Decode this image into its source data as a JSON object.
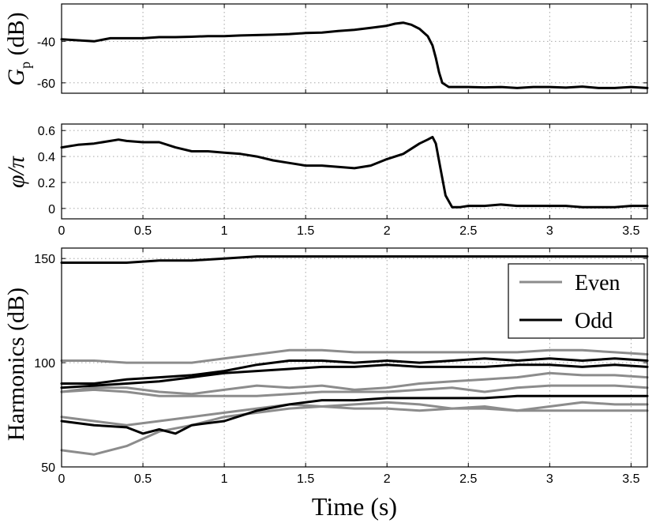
{
  "chart_data": [
    {
      "type": "line",
      "ylabel": "G_p (dB)",
      "ylabel_main": "G",
      "ylabel_sub": "p",
      "ylabel_unit": "(dB)",
      "xlim": [
        0,
        3.6
      ],
      "ylim": [
        -65,
        -22
      ],
      "xticks": [
        0,
        0.5,
        1,
        1.5,
        2,
        2.5,
        3,
        3.5
      ],
      "yticks": [
        -60,
        -40
      ],
      "ytick_labels": [
        "-60",
        "-40"
      ],
      "xtick_labels_shown": false,
      "grid": true,
      "series": [
        {
          "color": "#000000",
          "x": [
            0,
            0.1,
            0.2,
            0.3,
            0.4,
            0.5,
            0.6,
            0.7,
            0.8,
            0.9,
            1.0,
            1.1,
            1.2,
            1.3,
            1.4,
            1.5,
            1.6,
            1.7,
            1.8,
            1.9,
            2.0,
            2.05,
            2.1,
            2.15,
            2.2,
            2.25,
            2.28,
            2.3,
            2.32,
            2.34,
            2.38,
            2.45,
            2.5,
            2.6,
            2.7,
            2.8,
            2.9,
            3.0,
            3.1,
            3.2,
            3.3,
            3.4,
            3.5,
            3.6
          ],
          "y": [
            -39.0,
            -39.5,
            -40.0,
            -38.5,
            -38.5,
            -38.5,
            -38.0,
            -38.0,
            -37.8,
            -37.5,
            -37.5,
            -37.2,
            -37.0,
            -36.8,
            -36.5,
            -36.0,
            -35.8,
            -35.0,
            -34.5,
            -33.5,
            -32.5,
            -31.5,
            -31.0,
            -32.0,
            -34.0,
            -37.5,
            -42.0,
            -48.0,
            -55.0,
            -60.0,
            -62.0,
            -62.0,
            -62.0,
            -62.2,
            -62.0,
            -62.5,
            -62.0,
            -62.0,
            -62.3,
            -61.8,
            -62.5,
            -62.5,
            -62.0,
            -62.5
          ]
        }
      ]
    },
    {
      "type": "line",
      "ylabel": "φ/π",
      "xlim": [
        0,
        3.6
      ],
      "ylim": [
        -0.08,
        0.65
      ],
      "xticks": [
        0,
        0.5,
        1,
        1.5,
        2,
        2.5,
        3,
        3.5
      ],
      "xtick_labels": [
        "0",
        "0.5",
        "1",
        "1.5",
        "2",
        "2.5",
        "3",
        "3.5"
      ],
      "yticks": [
        0,
        0.2,
        0.4,
        0.6
      ],
      "ytick_labels": [
        "0",
        "0.2",
        "0.4",
        "0.6"
      ],
      "grid": true,
      "series": [
        {
          "color": "#000000",
          "x": [
            0,
            0.1,
            0.2,
            0.3,
            0.35,
            0.4,
            0.5,
            0.6,
            0.7,
            0.8,
            0.9,
            1.0,
            1.1,
            1.2,
            1.3,
            1.4,
            1.5,
            1.6,
            1.7,
            1.8,
            1.9,
            2.0,
            2.1,
            2.2,
            2.25,
            2.28,
            2.3,
            2.33,
            2.36,
            2.4,
            2.45,
            2.5,
            2.6,
            2.7,
            2.8,
            2.9,
            3.0,
            3.1,
            3.2,
            3.3,
            3.4,
            3.5,
            3.6
          ],
          "y": [
            0.47,
            0.49,
            0.5,
            0.52,
            0.53,
            0.52,
            0.51,
            0.51,
            0.47,
            0.44,
            0.44,
            0.43,
            0.42,
            0.4,
            0.37,
            0.35,
            0.33,
            0.33,
            0.32,
            0.31,
            0.33,
            0.38,
            0.42,
            0.5,
            0.53,
            0.55,
            0.5,
            0.3,
            0.1,
            0.01,
            0.01,
            0.02,
            0.02,
            0.03,
            0.02,
            0.02,
            0.02,
            0.02,
            0.01,
            0.01,
            0.01,
            0.02,
            0.02
          ]
        }
      ]
    },
    {
      "type": "line",
      "ylabel": "Harmonics (dB)",
      "xlabel": "Time (s)",
      "xlim": [
        0,
        3.6
      ],
      "ylim": [
        50,
        155
      ],
      "xticks": [
        0,
        0.5,
        1,
        1.5,
        2,
        2.5,
        3,
        3.5
      ],
      "xtick_labels": [
        "0",
        "0.5",
        "1",
        "1.5",
        "2",
        "2.5",
        "3",
        "3.5"
      ],
      "yticks": [
        50,
        100,
        150
      ],
      "ytick_labels": [
        "50",
        "100",
        "150"
      ],
      "grid": true,
      "legend": {
        "position": "top-right",
        "entries": [
          {
            "name": "Even",
            "color": "#8c8c8c"
          },
          {
            "name": "Odd",
            "color": "#000000"
          }
        ]
      },
      "series": [
        {
          "group": "Odd",
          "color": "#000000",
          "x": [
            0,
            0.2,
            0.4,
            0.6,
            0.8,
            1.0,
            1.2,
            1.4,
            1.6,
            1.8,
            2.0,
            2.2,
            2.4,
            2.6,
            2.8,
            3.0,
            3.2,
            3.4,
            3.6
          ],
          "y": [
            148,
            148,
            148,
            149,
            149,
            150,
            151,
            151,
            151,
            151,
            151,
            151,
            151,
            151,
            151,
            151,
            151,
            151,
            151
          ]
        },
        {
          "group": "Even",
          "color": "#8c8c8c",
          "x": [
            0,
            0.2,
            0.4,
            0.6,
            0.8,
            1.0,
            1.2,
            1.4,
            1.6,
            1.8,
            2.0,
            2.2,
            2.4,
            2.6,
            2.8,
            3.0,
            3.2,
            3.4,
            3.6
          ],
          "y": [
            101,
            101,
            100,
            100,
            100,
            102,
            104,
            106,
            106,
            105,
            105,
            105,
            105,
            105,
            105,
            106,
            106,
            105,
            104
          ]
        },
        {
          "group": "Odd",
          "color": "#000000",
          "x": [
            0,
            0.2,
            0.4,
            0.6,
            0.8,
            1.0,
            1.2,
            1.4,
            1.6,
            1.8,
            2.0,
            2.2,
            2.4,
            2.6,
            2.8,
            3.0,
            3.2,
            3.4,
            3.6
          ],
          "y": [
            90,
            90,
            92,
            93,
            94,
            96,
            99,
            101,
            101,
            100,
            101,
            100,
            101,
            102,
            101,
            102,
            101,
            102,
            101
          ]
        },
        {
          "group": "Odd",
          "color": "#000000",
          "x": [
            0,
            0.2,
            0.4,
            0.6,
            0.8,
            1.0,
            1.2,
            1.4,
            1.6,
            1.8,
            2.0,
            2.2,
            2.4,
            2.6,
            2.8,
            3.0,
            3.2,
            3.4,
            3.6
          ],
          "y": [
            88,
            89,
            90,
            91,
            93,
            95,
            96,
            97,
            98,
            98,
            99,
            98,
            98,
            98,
            99,
            99,
            98,
            99,
            98
          ]
        },
        {
          "group": "Even",
          "color": "#8c8c8c",
          "x": [
            0,
            0.2,
            0.4,
            0.6,
            0.8,
            1.0,
            1.2,
            1.4,
            1.6,
            1.8,
            2.0,
            2.2,
            2.4,
            2.6,
            2.8,
            3.0,
            3.2,
            3.4,
            3.6
          ],
          "y": [
            86,
            88,
            88,
            86,
            85,
            87,
            89,
            88,
            89,
            87,
            88,
            90,
            91,
            92,
            93,
            95,
            94,
            94,
            93
          ]
        },
        {
          "group": "Even",
          "color": "#8c8c8c",
          "x": [
            0,
            0.2,
            0.4,
            0.6,
            0.8,
            1.0,
            1.2,
            1.4,
            1.6,
            1.8,
            2.0,
            2.2,
            2.4,
            2.6,
            2.8,
            3.0,
            3.2,
            3.4,
            3.6
          ],
          "y": [
            86,
            87,
            86,
            84,
            84,
            84,
            84,
            85,
            86,
            86,
            86,
            87,
            88,
            86,
            88,
            89,
            89,
            89,
            88
          ]
        },
        {
          "group": "Odd",
          "color": "#000000",
          "x": [
            0,
            0.2,
            0.4,
            0.5,
            0.6,
            0.7,
            0.8,
            1.0,
            1.2,
            1.4,
            1.6,
            1.8,
            2.0,
            2.2,
            2.4,
            2.6,
            2.8,
            3.0,
            3.2,
            3.4,
            3.6
          ],
          "y": [
            72,
            70,
            69,
            66,
            68,
            66,
            70,
            72,
            77,
            80,
            82,
            82,
            83,
            83,
            83,
            83,
            84,
            84,
            84,
            84,
            84
          ]
        },
        {
          "group": "Even",
          "color": "#8c8c8c",
          "x": [
            0,
            0.2,
            0.4,
            0.6,
            0.8,
            1.0,
            1.2,
            1.4,
            1.6,
            1.8,
            2.0,
            2.2,
            2.4,
            2.6,
            2.8,
            3.0,
            3.2,
            3.4,
            3.6
          ],
          "y": [
            74,
            72,
            70,
            72,
            74,
            76,
            78,
            80,
            79,
            80,
            81,
            80,
            78,
            79,
            77,
            79,
            81,
            80,
            80
          ]
        },
        {
          "group": "Even",
          "color": "#8c8c8c",
          "x": [
            0,
            0.2,
            0.4,
            0.6,
            0.8,
            1.0,
            1.2,
            1.4,
            1.6,
            1.8,
            2.0,
            2.2,
            2.4,
            2.6,
            2.8,
            3.0,
            3.2,
            3.4,
            3.6
          ],
          "y": [
            58,
            56,
            60,
            67,
            70,
            74,
            76,
            78,
            79,
            78,
            78,
            77,
            78,
            78,
            77,
            77,
            77,
            77,
            77
          ]
        }
      ]
    }
  ]
}
